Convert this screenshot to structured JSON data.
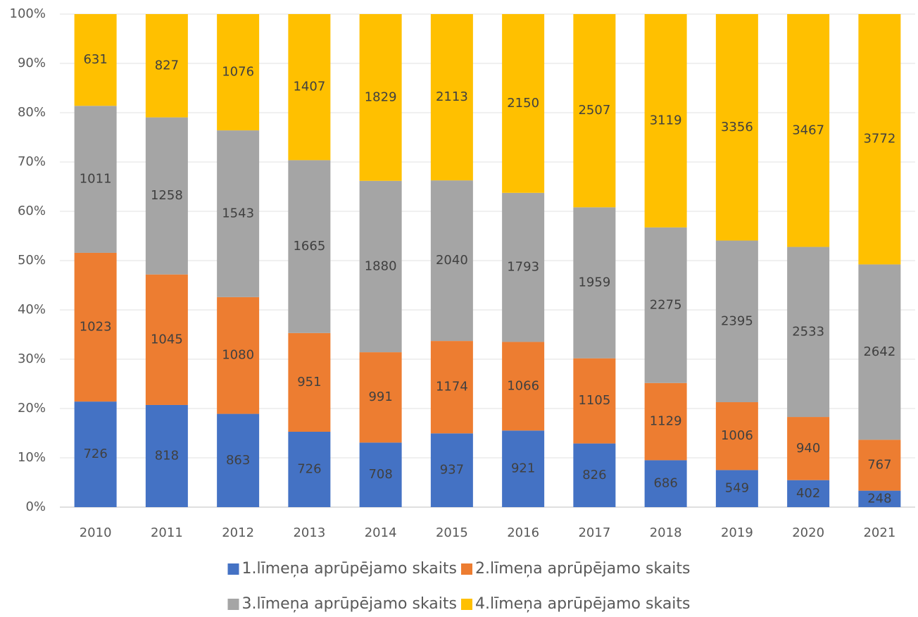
{
  "chart_data": {
    "type": "bar",
    "stacking": "percent",
    "categories": [
      "2010",
      "2011",
      "2012",
      "2013",
      "2014",
      "2015",
      "2016",
      "2017",
      "2018",
      "2019",
      "2020",
      "2021"
    ],
    "series": [
      {
        "name": "1.līmeņa aprūpējamo skaits",
        "color": "#4472c4",
        "values": [
          726,
          818,
          863,
          726,
          708,
          937,
          921,
          826,
          686,
          549,
          402,
          248
        ]
      },
      {
        "name": "2.līmeņa aprūpējamo skaits",
        "color": "#ed7d31",
        "values": [
          1023,
          1045,
          1080,
          951,
          991,
          1174,
          1066,
          1105,
          1129,
          1006,
          940,
          767
        ]
      },
      {
        "name": "3.līmeņa aprūpējamo skaits",
        "color": "#a5a5a5",
        "values": [
          1011,
          1258,
          1543,
          1665,
          1880,
          2040,
          1793,
          1959,
          2275,
          2395,
          2533,
          2642
        ]
      },
      {
        "name": "4.līmeņa aprūpējamo skaits",
        "color": "#ffc000",
        "values": [
          631,
          827,
          1076,
          1407,
          1829,
          2113,
          2150,
          2507,
          3119,
          3356,
          3467,
          3772
        ]
      }
    ],
    "ylim": [
      0,
      100
    ],
    "yticks": [
      {
        "value": 0,
        "label": "0%"
      },
      {
        "value": 10,
        "label": "10%"
      },
      {
        "value": 20,
        "label": "20%"
      },
      {
        "value": 30,
        "label": "30%"
      },
      {
        "value": 40,
        "label": "40%"
      },
      {
        "value": 50,
        "label": "50%"
      },
      {
        "value": 60,
        "label": "60%"
      },
      {
        "value": 70,
        "label": "70%"
      },
      {
        "value": 80,
        "label": "80%"
      },
      {
        "value": 90,
        "label": "90%"
      },
      {
        "value": 100,
        "label": "100%"
      }
    ],
    "grid": true,
    "legend": "bottom"
  }
}
